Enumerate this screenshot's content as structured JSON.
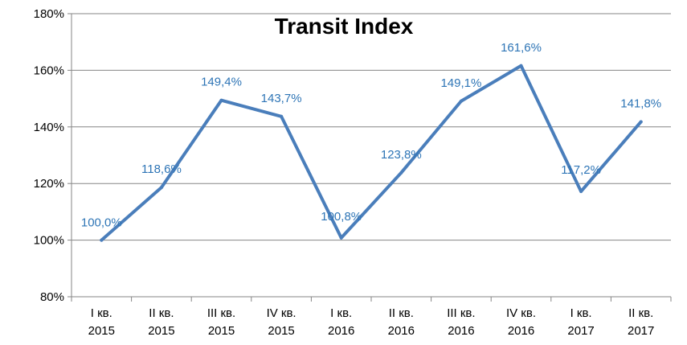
{
  "chart_data": {
    "type": "line",
    "title": "Transit Index",
    "xlabel": "",
    "ylabel": "",
    "categories": [
      [
        "I кв.",
        "2015"
      ],
      [
        "II кв.",
        "2015"
      ],
      [
        "III кв.",
        "2015"
      ],
      [
        "IV кв.",
        "2015"
      ],
      [
        "I кв.",
        "2016"
      ],
      [
        "II кв.",
        "2016"
      ],
      [
        "III кв.",
        "2016"
      ],
      [
        "IV кв.",
        "2016"
      ],
      [
        "I кв.",
        "2017"
      ],
      [
        "II кв.",
        "2017"
      ]
    ],
    "series": [
      {
        "values": [
          100.0,
          118.6,
          149.4,
          143.7,
          100.8,
          123.8,
          149.1,
          161.6,
          117.2,
          141.8
        ],
        "labels": [
          "100,0%",
          "118,6%",
          "149,4%",
          "143,7%",
          "100,8%",
          "123,8%",
          "149,1%",
          "161,6%",
          "117,2%",
          "141,8%"
        ],
        "color": "#4a7ebb"
      }
    ],
    "ylim": [
      80,
      180
    ],
    "yticks": [
      80,
      100,
      120,
      140,
      160,
      180
    ],
    "ytick_labels": [
      "80%",
      "100%",
      "120%",
      "140%",
      "160%",
      "180%"
    ],
    "grid": true,
    "label_color": "#2e75b6",
    "grid_color": "#868686"
  }
}
